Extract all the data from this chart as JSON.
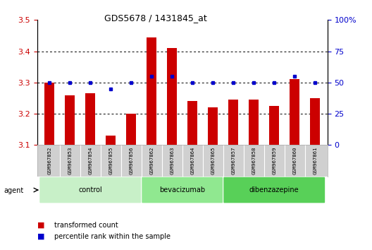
{
  "title": "GDS5678 / 1431845_at",
  "samples": [
    "GSM967852",
    "GSM967853",
    "GSM967854",
    "GSM967855",
    "GSM967856",
    "GSM967862",
    "GSM967863",
    "GSM967864",
    "GSM967865",
    "GSM967857",
    "GSM967858",
    "GSM967859",
    "GSM967860",
    "GSM967861"
  ],
  "transformed_count": [
    3.3,
    3.26,
    3.265,
    3.13,
    3.2,
    3.445,
    3.41,
    3.24,
    3.22,
    3.245,
    3.245,
    3.225,
    3.31,
    3.25
  ],
  "percentile_rank": [
    50,
    50,
    50,
    45,
    50,
    55,
    55,
    50,
    50,
    50,
    50,
    50,
    55,
    50
  ],
  "groups": [
    {
      "label": "control",
      "start": 0,
      "end": 5,
      "color": "#c8f0c8"
    },
    {
      "label": "bevacizumab",
      "start": 5,
      "end": 9,
      "color": "#90e890"
    },
    {
      "label": "dibenzazepine",
      "start": 9,
      "end": 14,
      "color": "#58d058"
    }
  ],
  "ylim_left": [
    3.1,
    3.5
  ],
  "ylim_right": [
    0,
    100
  ],
  "yticks_left": [
    3.1,
    3.2,
    3.3,
    3.4,
    3.5
  ],
  "yticks_right": [
    0,
    25,
    50,
    75,
    100
  ],
  "bar_color": "#cc0000",
  "dot_color": "#0000cc",
  "background_color": "#ffffff",
  "tick_area_color": "#d0d0d0",
  "legend_items": [
    "transformed count",
    "percentile rank within the sample"
  ],
  "legend_colors": [
    "#cc0000",
    "#0000cc"
  ],
  "agent_label": "agent",
  "bar_width": 0.5,
  "grid_yticks": [
    3.2,
    3.3,
    3.4
  ]
}
